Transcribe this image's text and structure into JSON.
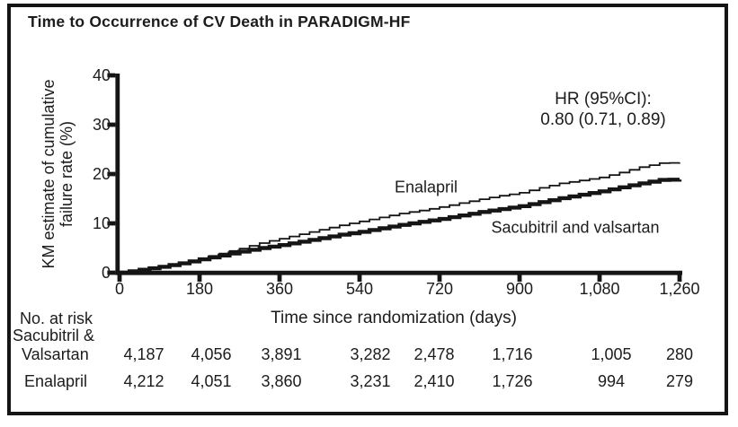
{
  "figure": {
    "title": "Time to Occurrence of CV Death in PARADIGM-HF",
    "hr_annotation": {
      "line1": "HR (95%CI):",
      "line2": "0.80 (0.71, 0.89)"
    },
    "ink_color": "#151515",
    "background_color": "#ffffff"
  },
  "chart_data": {
    "type": "line",
    "title": "Time to Occurrence of CV Death in PARADIGM-HF",
    "xlabel": "Time since randomization (days)",
    "ylabel": "KM estimate of cumulative failure rate (%)",
    "ylabel_lines": [
      "KM estimate of cumulative",
      "failure rate (%)"
    ],
    "xlim": [
      0,
      1260
    ],
    "ylim": [
      0,
      40
    ],
    "xticks": [
      0,
      180,
      360,
      540,
      720,
      900,
      1080,
      1260
    ],
    "xtick_labels": [
      "0",
      "180",
      "360",
      "540",
      "720",
      "900",
      "1,080",
      "1,260"
    ],
    "yticks": [
      0,
      10,
      20,
      30,
      40
    ],
    "ytick_labels": [
      "0",
      "10",
      "20",
      "30",
      "40"
    ],
    "grid": false,
    "legend_position": "inline-curve-labels",
    "annotation": [
      "HR (95%CI):",
      "0.80 (0.71, 0.89)"
    ],
    "curve_style": "kaplan-meier-steps",
    "x": [
      0,
      45,
      90,
      135,
      180,
      225,
      270,
      315,
      360,
      405,
      450,
      495,
      540,
      585,
      630,
      675,
      720,
      765,
      810,
      855,
      900,
      945,
      990,
      1035,
      1080,
      1125,
      1170,
      1215,
      1260
    ],
    "series": [
      {
        "name": "Enalapril",
        "line_weight": "thin",
        "values": [
          0,
          0.6,
          1.3,
          2.1,
          2.9,
          3.9,
          4.9,
          6.0,
          6.9,
          7.8,
          8.7,
          9.6,
          10.4,
          11.2,
          12.0,
          12.6,
          13.3,
          14.1,
          14.9,
          15.6,
          16.2,
          17.2,
          18.1,
          18.7,
          19.3,
          20.3,
          21.4,
          22.2,
          22.3
        ]
      },
      {
        "name": "Sacubitril and valsartan",
        "line_weight": "thick",
        "values": [
          0,
          0.6,
          1.2,
          1.9,
          2.7,
          3.5,
          4.3,
          5.0,
          5.6,
          6.3,
          7.0,
          7.7,
          8.3,
          9.0,
          9.7,
          10.3,
          10.9,
          11.6,
          12.3,
          12.9,
          13.5,
          14.3,
          15.1,
          15.8,
          16.5,
          17.3,
          18.1,
          18.8,
          18.9
        ]
      }
    ],
    "risk_table": {
      "header": "No. at risk",
      "rows": [
        {
          "label_lines": [
            "Sacubitril &",
            "Valsartan"
          ],
          "values": [
            "4,187",
            "4,056",
            "3,891",
            "3,282",
            "2,478",
            "1,716",
            "1,005",
            "280"
          ]
        },
        {
          "label_lines": [
            "Enalapril"
          ],
          "values": [
            "4,212",
            "4,051",
            "3,860",
            "3,231",
            "2,410",
            "1,726",
            "994",
            "279"
          ]
        }
      ]
    }
  }
}
